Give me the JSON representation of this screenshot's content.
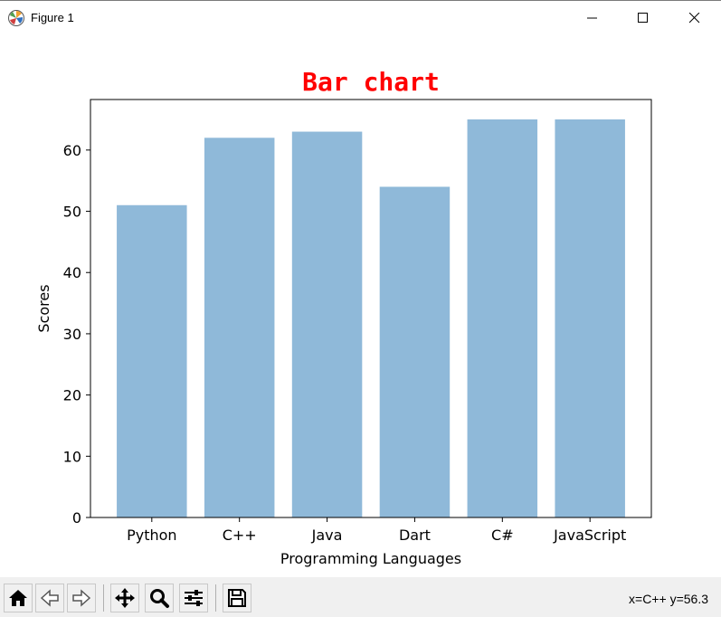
{
  "window": {
    "title": "Figure 1"
  },
  "icons": {
    "app": "matplotlib-logo-icon",
    "minimize": "minimize-icon",
    "maximize": "maximize-icon",
    "close": "close-icon"
  },
  "toolbar": {
    "buttons": [
      "home-icon",
      "back-arrow-icon",
      "forward-arrow-icon",
      "pan-icon",
      "zoom-icon",
      "configure-subplots-icon",
      "save-icon"
    ],
    "coords": "x=C++ y=56.3"
  },
  "chart_data": {
    "type": "bar",
    "title": "Bar chart",
    "title_color": "#ff0000",
    "xlabel": "Programming Languages",
    "ylabel": "Scores",
    "categories": [
      "Python",
      "C++",
      "Java",
      "Dart",
      "C#",
      "JavaScript"
    ],
    "values": [
      51,
      62,
      63,
      54,
      65,
      65
    ],
    "ylim": [
      0,
      68.25
    ],
    "yticks": [
      0,
      10,
      20,
      30,
      40,
      50,
      60
    ],
    "bar_color": "#8fb9d9",
    "grid": false,
    "legend": "none"
  }
}
